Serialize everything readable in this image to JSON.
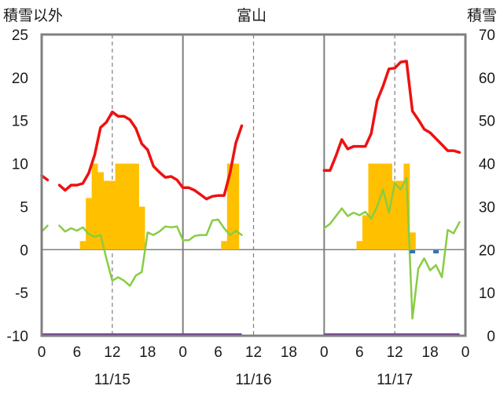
{
  "chart_data": {
    "type": "line",
    "title": "富山",
    "ylabel": "積雪以外",
    "y2label": "積雪",
    "ylim": [
      -10,
      25
    ],
    "y2lim": [
      0,
      70
    ],
    "yticks": [
      -10,
      -5,
      0,
      5,
      10,
      15,
      20,
      25
    ],
    "y2ticks": [
      0,
      10,
      20,
      30,
      40,
      50,
      60,
      70
    ],
    "xlim": [
      0,
      72
    ],
    "xticks": [
      0,
      6,
      12,
      18,
      24,
      30,
      36,
      42,
      48,
      54,
      60,
      66,
      72
    ],
    "xtick_labels": [
      "0",
      "6",
      "12",
      "18",
      "0",
      "6",
      "12",
      "18",
      "0",
      "6",
      "12",
      "18",
      "0"
    ],
    "day_labels": [
      {
        "x": 12,
        "label": "11/15"
      },
      {
        "x": 36,
        "label": "11/16"
      },
      {
        "x": 60,
        "label": "11/17"
      }
    ],
    "grid": {
      "day_lines": [
        0,
        24,
        48,
        72
      ],
      "noon_dashed": [
        12,
        36,
        60
      ]
    },
    "colors": {
      "temperature": "#ee1111",
      "series_green": "#88cc44",
      "bars": "#ffc000",
      "bottom_line": "#7030a0",
      "markers": "#2e75b6",
      "frame": "#808080"
    },
    "series": [
      {
        "type": "line",
        "color": "#ee1111",
        "axis": "left",
        "points": [
          [
            0,
            8.6
          ],
          [
            1,
            8.1
          ],
          null,
          [
            3,
            7.5
          ],
          [
            4,
            6.9
          ],
          [
            5,
            7.5
          ],
          [
            6,
            7.5
          ],
          [
            7,
            7.7
          ],
          [
            8,
            8.9
          ],
          [
            9,
            11.0
          ],
          [
            10,
            14.2
          ],
          [
            11,
            14.8
          ],
          [
            12,
            16.0
          ],
          [
            13,
            15.5
          ],
          [
            14,
            15.5
          ],
          [
            15,
            15.1
          ],
          [
            16,
            14.1
          ],
          [
            17,
            12.3
          ],
          [
            18,
            11.6
          ],
          [
            19,
            9.7
          ],
          [
            20,
            9.0
          ],
          [
            21,
            8.4
          ],
          [
            22,
            8.5
          ],
          [
            23,
            8.1
          ],
          [
            24,
            7.2
          ],
          [
            25,
            7.2
          ],
          [
            26,
            6.9
          ],
          [
            27,
            6.4
          ],
          [
            28,
            5.9
          ],
          [
            29,
            6.2
          ],
          [
            30,
            6.3
          ],
          [
            31,
            6.3
          ],
          [
            32,
            8.9
          ],
          [
            33,
            12.4
          ],
          [
            34,
            14.4
          ]
        ]
      },
      {
        "type": "line",
        "color": "#ee1111",
        "axis": "left",
        "points": [
          [
            48,
            9.2
          ],
          [
            49,
            9.2
          ],
          [
            50,
            10.9
          ],
          [
            51,
            12.8
          ],
          [
            52,
            11.7
          ],
          [
            53,
            12.0
          ],
          [
            54,
            12.0
          ],
          [
            55,
            12.0
          ],
          [
            56,
            13.5
          ],
          [
            57,
            17.3
          ],
          [
            58,
            19.0
          ],
          [
            59,
            21.0
          ],
          [
            60,
            21.1
          ],
          [
            61,
            21.8
          ],
          [
            62,
            21.9
          ],
          [
            63,
            16.1
          ],
          [
            64,
            15.1
          ],
          [
            65,
            14.0
          ],
          [
            66,
            13.6
          ],
          [
            67,
            12.9
          ],
          [
            68,
            12.2
          ],
          [
            69,
            11.5
          ],
          [
            70,
            11.5
          ],
          [
            71,
            11.3
          ]
        ]
      },
      {
        "type": "line",
        "color": "#88cc44",
        "axis": "left",
        "points": [
          [
            0,
            2.1
          ],
          [
            1,
            2.8
          ],
          null,
          [
            3,
            2.8
          ],
          [
            4,
            2.1
          ],
          [
            5,
            2.5
          ],
          [
            6,
            2.2
          ],
          [
            7,
            2.6
          ],
          [
            8,
            1.8
          ],
          [
            9,
            1.5
          ],
          [
            10,
            1.7
          ],
          [
            11,
            -1.0
          ],
          [
            12,
            -3.6
          ],
          [
            13,
            -3.2
          ],
          [
            14,
            -3.6
          ],
          [
            15,
            -4.2
          ],
          [
            16,
            -3.0
          ],
          [
            17,
            -2.6
          ],
          [
            18,
            2.0
          ],
          [
            19,
            1.7
          ],
          [
            20,
            2.1
          ],
          [
            21,
            2.7
          ],
          [
            22,
            2.6
          ],
          [
            23,
            2.7
          ],
          [
            24,
            1.1
          ],
          [
            25,
            1.1
          ],
          [
            26,
            1.6
          ],
          [
            27,
            1.7
          ],
          [
            28,
            1.7
          ],
          [
            29,
            3.4
          ],
          [
            30,
            3.5
          ],
          [
            31,
            2.5
          ],
          [
            32,
            1.7
          ],
          [
            33,
            2.2
          ],
          [
            34,
            1.7
          ]
        ]
      },
      {
        "type": "line",
        "color": "#88cc44",
        "axis": "left",
        "points": [
          [
            48,
            2.5
          ],
          [
            49,
            3.0
          ],
          [
            50,
            3.9
          ],
          [
            51,
            4.8
          ],
          [
            52,
            3.9
          ],
          [
            53,
            4.3
          ],
          [
            54,
            4.0
          ],
          [
            55,
            4.4
          ],
          [
            56,
            3.6
          ],
          [
            57,
            5.0
          ],
          [
            58,
            7.0
          ],
          [
            59,
            4.3
          ],
          [
            60,
            7.7
          ],
          [
            61,
            7.0
          ],
          [
            62,
            8.3
          ],
          [
            63,
            -8.0
          ],
          [
            64,
            -2.2
          ],
          [
            65,
            -1.0
          ],
          [
            66,
            -2.4
          ],
          [
            67,
            -1.8
          ],
          [
            68,
            -3.2
          ],
          [
            69,
            2.3
          ],
          [
            70,
            1.9
          ],
          [
            71,
            3.2
          ]
        ]
      }
    ],
    "bars": {
      "axis": "left",
      "color": "#ffc000",
      "points": [
        [
          7,
          1
        ],
        [
          8,
          6
        ],
        [
          9,
          10
        ],
        [
          10,
          9
        ],
        [
          11,
          8
        ],
        [
          12,
          8
        ],
        [
          13,
          10
        ],
        [
          14,
          10
        ],
        [
          15,
          10
        ],
        [
          16,
          10
        ],
        [
          17,
          5
        ],
        [
          31,
          1
        ],
        [
          32,
          10
        ],
        [
          33,
          10
        ],
        [
          54,
          1
        ],
        [
          55,
          4
        ],
        [
          56,
          10
        ],
        [
          57,
          10
        ],
        [
          58,
          10
        ],
        [
          59,
          10
        ],
        [
          60,
          8
        ],
        [
          61,
          8
        ],
        [
          62,
          10
        ],
        [
          63,
          2
        ]
      ]
    },
    "markers": {
      "axis": "left",
      "color": "#2e75b6",
      "points": [
        [
          63,
          -0.25
        ],
        [
          67,
          -0.25
        ]
      ]
    },
    "bottom_lines": {
      "axis": "left",
      "color": "#7030a0",
      "value": -10,
      "segments": [
        [
          0,
          34
        ],
        [
          48,
          71
        ]
      ]
    }
  }
}
